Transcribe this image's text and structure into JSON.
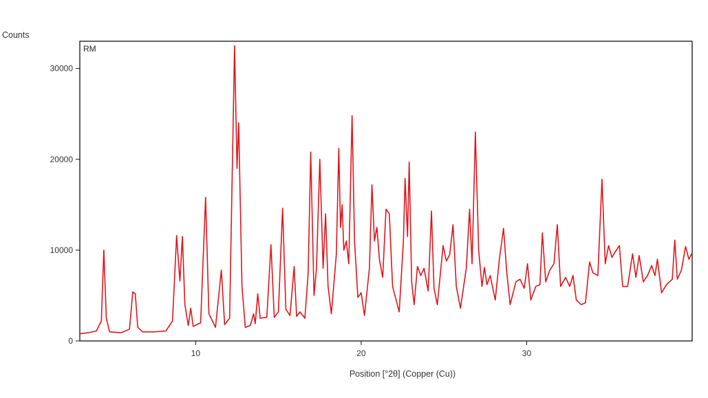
{
  "chart_data": {
    "type": "line",
    "ylabel": "Counts",
    "xlabel": "Position [°2θ] (Copper (Cu))",
    "plot_tag": "RM",
    "xlim": [
      3,
      40
    ],
    "ylim": [
      0,
      33000
    ],
    "x_ticks": [
      10,
      20,
      30
    ],
    "y_ticks": [
      0,
      10000,
      20000,
      30000
    ],
    "grid": false,
    "legend": "none",
    "line_color": "#e0141b",
    "series": [
      {
        "points": [
          [
            3.0,
            800
          ],
          [
            3.5,
            900
          ],
          [
            4.0,
            1100
          ],
          [
            4.3,
            2200
          ],
          [
            4.45,
            10000
          ],
          [
            4.6,
            2500
          ],
          [
            4.8,
            1000
          ],
          [
            5.5,
            900
          ],
          [
            6.0,
            1300
          ],
          [
            6.2,
            5400
          ],
          [
            6.35,
            5200
          ],
          [
            6.5,
            1500
          ],
          [
            6.8,
            1000
          ],
          [
            7.5,
            1000
          ],
          [
            8.2,
            1100
          ],
          [
            8.6,
            2200
          ],
          [
            8.85,
            11600
          ],
          [
            8.95,
            9000
          ],
          [
            9.05,
            6600
          ],
          [
            9.2,
            11500
          ],
          [
            9.35,
            4000
          ],
          [
            9.55,
            1700
          ],
          [
            9.7,
            3600
          ],
          [
            9.85,
            1600
          ],
          [
            10.3,
            2000
          ],
          [
            10.6,
            15800
          ],
          [
            10.8,
            3000
          ],
          [
            11.2,
            1500
          ],
          [
            11.55,
            7800
          ],
          [
            11.75,
            1800
          ],
          [
            12.05,
            2500
          ],
          [
            12.35,
            32500
          ],
          [
            12.5,
            19000
          ],
          [
            12.6,
            24000
          ],
          [
            12.8,
            6000
          ],
          [
            13.0,
            1500
          ],
          [
            13.3,
            1700
          ],
          [
            13.5,
            3000
          ],
          [
            13.6,
            1900
          ],
          [
            13.75,
            5200
          ],
          [
            13.9,
            2500
          ],
          [
            14.3,
            2600
          ],
          [
            14.55,
            10600
          ],
          [
            14.75,
            2600
          ],
          [
            15.0,
            3200
          ],
          [
            15.25,
            14600
          ],
          [
            15.45,
            3500
          ],
          [
            15.7,
            2800
          ],
          [
            15.95,
            8200
          ],
          [
            16.1,
            2700
          ],
          [
            16.3,
            3200
          ],
          [
            16.6,
            2500
          ],
          [
            16.8,
            7500
          ],
          [
            16.95,
            20800
          ],
          [
            17.15,
            5000
          ],
          [
            17.3,
            8000
          ],
          [
            17.5,
            20000
          ],
          [
            17.7,
            8000
          ],
          [
            17.85,
            14000
          ],
          [
            18.0,
            6000
          ],
          [
            18.2,
            3000
          ],
          [
            18.5,
            9500
          ],
          [
            18.65,
            21200
          ],
          [
            18.75,
            12500
          ],
          [
            18.85,
            15000
          ],
          [
            18.95,
            10000
          ],
          [
            19.1,
            11000
          ],
          [
            19.25,
            8500
          ],
          [
            19.45,
            24800
          ],
          [
            19.6,
            11000
          ],
          [
            19.8,
            4800
          ],
          [
            20.0,
            5300
          ],
          [
            20.2,
            2800
          ],
          [
            20.5,
            8000
          ],
          [
            20.65,
            17200
          ],
          [
            20.8,
            11000
          ],
          [
            20.95,
            12500
          ],
          [
            21.1,
            9000
          ],
          [
            21.3,
            7000
          ],
          [
            21.5,
            14500
          ],
          [
            21.7,
            14000
          ],
          [
            21.9,
            6000
          ],
          [
            22.3,
            3200
          ],
          [
            22.55,
            11000
          ],
          [
            22.65,
            17900
          ],
          [
            22.8,
            11500
          ],
          [
            22.9,
            19700
          ],
          [
            23.05,
            6500
          ],
          [
            23.2,
            4000
          ],
          [
            23.4,
            8200
          ],
          [
            23.6,
            7200
          ],
          [
            23.8,
            8000
          ],
          [
            24.05,
            5500
          ],
          [
            24.25,
            14300
          ],
          [
            24.4,
            5800
          ],
          [
            24.6,
            4000
          ],
          [
            24.95,
            10500
          ],
          [
            25.15,
            8800
          ],
          [
            25.35,
            9500
          ],
          [
            25.55,
            12800
          ],
          [
            25.75,
            6000
          ],
          [
            26.0,
            3600
          ],
          [
            26.35,
            8000
          ],
          [
            26.55,
            14500
          ],
          [
            26.7,
            8500
          ],
          [
            26.9,
            23000
          ],
          [
            27.1,
            10000
          ],
          [
            27.3,
            6000
          ],
          [
            27.45,
            8100
          ],
          [
            27.6,
            6200
          ],
          [
            27.8,
            7200
          ],
          [
            28.1,
            4500
          ],
          [
            28.35,
            9000
          ],
          [
            28.6,
            12400
          ],
          [
            28.8,
            7500
          ],
          [
            29.0,
            4000
          ],
          [
            29.35,
            6500
          ],
          [
            29.6,
            6800
          ],
          [
            29.85,
            5800
          ],
          [
            30.05,
            8500
          ],
          [
            30.25,
            4500
          ],
          [
            30.55,
            6000
          ],
          [
            30.8,
            6200
          ],
          [
            30.95,
            11900
          ],
          [
            31.15,
            6500
          ],
          [
            31.4,
            7800
          ],
          [
            31.65,
            8500
          ],
          [
            31.85,
            12800
          ],
          [
            32.05,
            6000
          ],
          [
            32.35,
            7000
          ],
          [
            32.6,
            6000
          ],
          [
            32.8,
            7200
          ],
          [
            33.0,
            4500
          ],
          [
            33.3,
            4000
          ],
          [
            33.55,
            4200
          ],
          [
            33.8,
            8700
          ],
          [
            34.0,
            7500
          ],
          [
            34.3,
            7200
          ],
          [
            34.55,
            17800
          ],
          [
            34.75,
            8500
          ],
          [
            34.95,
            10500
          ],
          [
            35.15,
            9200
          ],
          [
            35.35,
            9800
          ],
          [
            35.6,
            10500
          ],
          [
            35.8,
            6000
          ],
          [
            36.1,
            6000
          ],
          [
            36.4,
            9600
          ],
          [
            36.6,
            7000
          ],
          [
            36.8,
            9400
          ],
          [
            37.05,
            6500
          ],
          [
            37.3,
            7200
          ],
          [
            37.55,
            8300
          ],
          [
            37.75,
            7200
          ],
          [
            37.9,
            9000
          ],
          [
            38.15,
            5300
          ],
          [
            38.45,
            6200
          ],
          [
            38.8,
            6800
          ],
          [
            38.95,
            11100
          ],
          [
            39.1,
            6800
          ],
          [
            39.35,
            7800
          ],
          [
            39.6,
            10400
          ],
          [
            39.8,
            9000
          ],
          [
            40.0,
            9700
          ]
        ]
      }
    ]
  }
}
